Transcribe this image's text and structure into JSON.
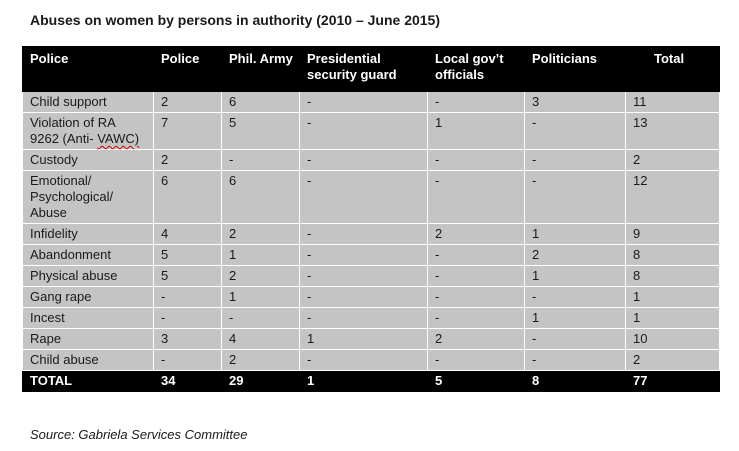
{
  "title": "Abuses on women by persons in authority (2010 – June 2015)",
  "columns": [
    "Police",
    "Police",
    "Phil. Army",
    "Presidential security guard",
    "Local gov’t officials",
    "Politicians",
    "Total"
  ],
  "rows": [
    {
      "label": "Child support",
      "police": "2",
      "army": "6",
      "psg": "-",
      "lgu": "-",
      "politicians": "3",
      "total": "11"
    },
    {
      "label": "Violation of RA 9262 (Anti-",
      "label_extra": "VAWC)",
      "police": "7",
      "army": "5",
      "psg": "-",
      "lgu": "1",
      "politicians": "-",
      "total": "13"
    },
    {
      "label": "Custody",
      "police": "2",
      "army": "-",
      "psg": "-",
      "lgu": "-",
      "politicians": "-",
      "total": "2"
    },
    {
      "label": "Emotional/ Psychological/ Abuse",
      "police": "6",
      "army": "6",
      "psg": "-",
      "lgu": "-",
      "politicians": "-",
      "total": "12"
    },
    {
      "label": "Infidelity",
      "police": "4",
      "army": "2",
      "psg": "-",
      "lgu": "2",
      "politicians": "1",
      "total": "9"
    },
    {
      "label": "Abandonment",
      "police": "5",
      "army": "1",
      "psg": "-",
      "lgu": "-",
      "politicians": "2",
      "total": "8"
    },
    {
      "label": "Physical abuse",
      "police": "5",
      "army": "2",
      "psg": "-",
      "lgu": "-",
      "politicians": "1",
      "total": "8"
    },
    {
      "label": "Gang rape",
      "police": "-",
      "army": "1",
      "psg": "-",
      "lgu": "-",
      "politicians": "-",
      "total": "1"
    },
    {
      "label": "Incest",
      "police": "-",
      "army": "-",
      "psg": "-",
      "lgu": "-",
      "politicians": "1",
      "total": "1"
    },
    {
      "label": "Rape",
      "police": "3",
      "army": "4",
      "psg": "1",
      "lgu": "2",
      "politicians": "-",
      "total": "10"
    },
    {
      "label": "Child abuse",
      "police": "-",
      "army": "2",
      "psg": "-",
      "lgu": "-",
      "politicians": "-",
      "total": "2"
    }
  ],
  "totals": {
    "label": "TOTAL",
    "police": "34",
    "army": "29",
    "psg": "1",
    "lgu": "5",
    "politicians": "8",
    "total": "77"
  },
  "source": "Source: Gabriela Services Committee"
}
